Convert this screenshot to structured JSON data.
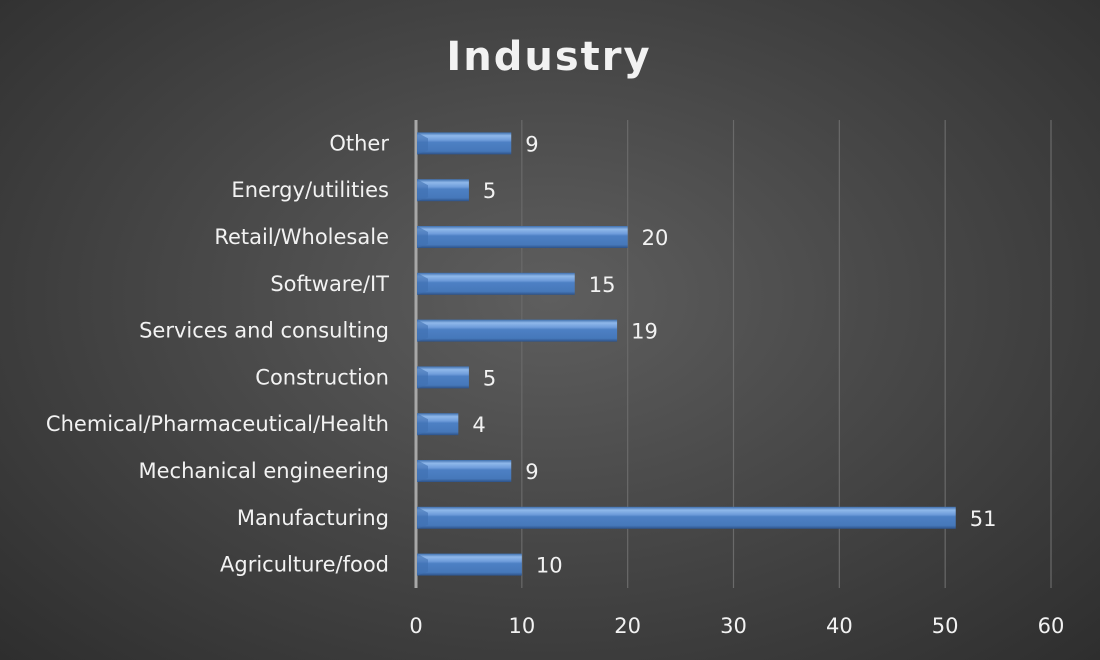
{
  "chart_data": {
    "type": "bar",
    "orientation": "horizontal",
    "title": "Industry",
    "categories": [
      "Agriculture/food",
      "Manufacturing",
      "Mechanical engineering",
      "Chemical/Pharmaceutical/Health",
      "Construction",
      "Services and consulting",
      "Software/IT",
      "Retail/Wholesale",
      "Energy/utilities",
      "Other"
    ],
    "values": [
      10,
      51,
      9,
      4,
      5,
      19,
      15,
      20,
      5,
      9
    ],
    "xlim": [
      0,
      60
    ],
    "xticks": [
      0,
      10,
      20,
      30,
      40,
      50,
      60
    ],
    "grid": "vertical",
    "xlabel": "",
    "ylabel": "",
    "bar_color": "#4f81bd",
    "data_labels": true
  }
}
